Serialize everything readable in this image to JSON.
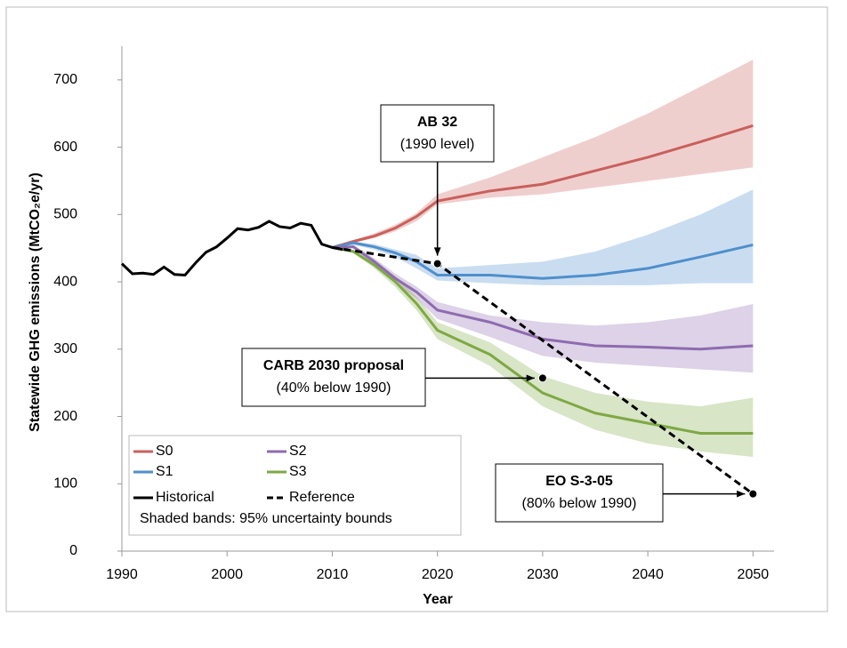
{
  "chart_data": {
    "type": "line",
    "xlabel": "Year",
    "ylabel": "Statewide GHG emissions (MtCO₂e/yr)",
    "xlim": [
      1990,
      2052
    ],
    "xticks": [
      1990,
      2000,
      2010,
      2020,
      2030,
      2040,
      2050
    ],
    "ylim": [
      0,
      750
    ],
    "yticks": [
      0,
      100,
      200,
      300,
      400,
      500,
      600,
      700
    ],
    "series": [
      {
        "name": "S0",
        "color": "#c9605c",
        "x": [
          2010,
          2012,
          2014,
          2016,
          2018,
          2020,
          2025,
          2030,
          2035,
          2040,
          2045,
          2050
        ],
        "values": [
          451,
          460,
          468,
          480,
          497,
          520,
          535,
          545,
          565,
          585,
          608,
          632
        ],
        "lower": [
          451,
          458,
          465,
          475,
          490,
          515,
          525,
          530,
          540,
          550,
          560,
          570
        ],
        "upper": [
          451,
          462,
          472,
          485,
          502,
          530,
          555,
          585,
          615,
          650,
          690,
          730
        ]
      },
      {
        "name": "S1",
        "color": "#4f8fcc",
        "x": [
          2010,
          2012,
          2014,
          2016,
          2018,
          2020,
          2025,
          2030,
          2035,
          2040,
          2045,
          2050
        ],
        "values": [
          451,
          458,
          452,
          443,
          430,
          410,
          410,
          405,
          410,
          420,
          437,
          455
        ],
        "lower": [
          451,
          455,
          448,
          437,
          420,
          402,
          398,
          395,
          395,
          395,
          398,
          398
        ],
        "upper": [
          451,
          460,
          456,
          448,
          440,
          420,
          425,
          430,
          445,
          470,
          500,
          537
        ]
      },
      {
        "name": "S2",
        "color": "#8e6bb0",
        "x": [
          2010,
          2012,
          2014,
          2016,
          2018,
          2020,
          2025,
          2030,
          2035,
          2040,
          2045,
          2050
        ],
        "values": [
          451,
          452,
          430,
          405,
          385,
          358,
          340,
          315,
          305,
          303,
          300,
          305
        ],
        "lower": [
          451,
          450,
          425,
          398,
          375,
          345,
          318,
          290,
          280,
          275,
          270,
          265
        ],
        "upper": [
          451,
          455,
          435,
          412,
          393,
          370,
          350,
          340,
          335,
          340,
          350,
          367
        ]
      },
      {
        "name": "S3",
        "color": "#7fa844",
        "x": [
          2010,
          2012,
          2014,
          2016,
          2018,
          2020,
          2025,
          2030,
          2035,
          2040,
          2045,
          2050
        ],
        "values": [
          451,
          445,
          425,
          400,
          368,
          328,
          292,
          235,
          205,
          190,
          175,
          175
        ],
        "lower": [
          451,
          443,
          420,
          392,
          358,
          315,
          275,
          215,
          180,
          160,
          148,
          140
        ],
        "upper": [
          451,
          448,
          430,
          408,
          378,
          340,
          310,
          260,
          235,
          222,
          215,
          228
        ]
      },
      {
        "name": "Historical",
        "color": "#000000",
        "x": [
          1990,
          1991,
          1992,
          1993,
          1994,
          1995,
          1996,
          1997,
          1998,
          1999,
          2000,
          2001,
          2002,
          2003,
          2004,
          2005,
          2006,
          2007,
          2008,
          2009,
          2010,
          2011
        ],
        "values": [
          427,
          412,
          413,
          411,
          422,
          411,
          410,
          428,
          444,
          452,
          465,
          479,
          477,
          481,
          490,
          482,
          480,
          487,
          484,
          456,
          451,
          448
        ]
      },
      {
        "name": "Reference",
        "color": "#000000",
        "dashed": true,
        "x": [
          2010,
          2020,
          2050
        ],
        "values": [
          451,
          427,
          85
        ]
      }
    ],
    "legend_note": "Shaded bands: 95% uncertainty bounds",
    "targets": [
      {
        "title": "AB 32",
        "subtitle": "(1990 level)",
        "x": 2020,
        "value": 427
      },
      {
        "title": "CARB 2030 proposal",
        "subtitle": "(40% below 1990)",
        "x": 2030,
        "value": 257
      },
      {
        "title": "EO S-3-05",
        "subtitle": "(80% below 1990)",
        "x": 2050,
        "value": 85
      }
    ]
  }
}
